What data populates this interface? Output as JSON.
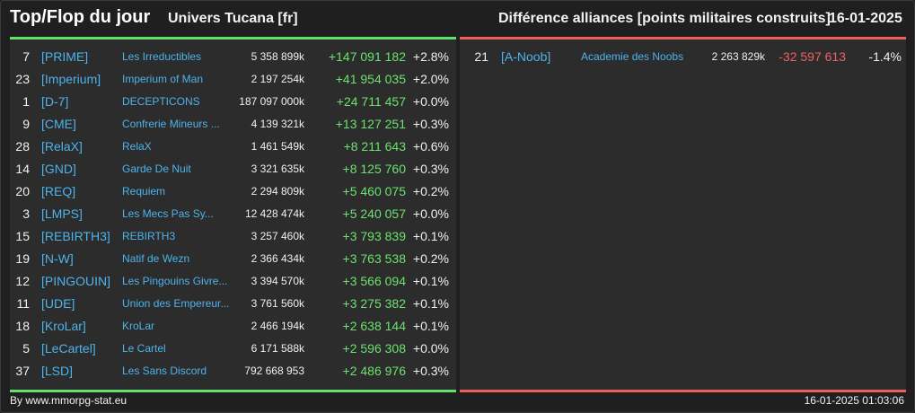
{
  "header": {
    "title": "Top/Flop du jour",
    "universe": "Univers Tucana [fr]",
    "metric": "Différence alliances [points militaires construits]",
    "date": "16-01-2025"
  },
  "colors": {
    "positive": "#6be26f",
    "negative": "#f06161",
    "link": "#4db3ec"
  },
  "top": [
    {
      "rank": "7",
      "tag": "[PRIME]",
      "name": "Les Irreductibles",
      "points": "5 358 899k",
      "diff": "+147 091 182",
      "pct": "+2.8%"
    },
    {
      "rank": "23",
      "tag": "[Imperium]",
      "name": "Imperium of Man",
      "points": "2 197 254k",
      "diff": "+41 954 035",
      "pct": "+2.0%"
    },
    {
      "rank": "1",
      "tag": "[D-7]",
      "name": "DECEPTICONS",
      "points": "187 097 000k",
      "diff": "+24 711 457",
      "pct": "+0.0%"
    },
    {
      "rank": "9",
      "tag": "[CME]",
      "name": "Confrerie Mineurs ...",
      "points": "4 139 321k",
      "diff": "+13 127 251",
      "pct": "+0.3%"
    },
    {
      "rank": "28",
      "tag": "[RelaX]",
      "name": "RelaX",
      "points": "1 461 549k",
      "diff": "+8 211 643",
      "pct": "+0.6%"
    },
    {
      "rank": "14",
      "tag": "[GND]",
      "name": "Garde De Nuit",
      "points": "3 321 635k",
      "diff": "+8 125 760",
      "pct": "+0.3%"
    },
    {
      "rank": "20",
      "tag": "[REQ]",
      "name": "Requiem",
      "points": "2 294 809k",
      "diff": "+5 460 075",
      "pct": "+0.2%"
    },
    {
      "rank": "3",
      "tag": "[LMPS]",
      "name": "Les Mecs Pas Sy...",
      "points": "12 428 474k",
      "diff": "+5 240 057",
      "pct": "+0.0%"
    },
    {
      "rank": "15",
      "tag": "[REBIRTH3]",
      "name": "REBIRTH3",
      "points": "3 257 460k",
      "diff": "+3 793 839",
      "pct": "+0.1%"
    },
    {
      "rank": "19",
      "tag": "[N-W]",
      "name": "Natif de Wezn",
      "points": "2 366 434k",
      "diff": "+3 763 538",
      "pct": "+0.2%"
    },
    {
      "rank": "12",
      "tag": "[PINGOUIN]",
      "name": "Les Pingouins Givre...",
      "points": "3 394 570k",
      "diff": "+3 566 094",
      "pct": "+0.1%"
    },
    {
      "rank": "11",
      "tag": "[UDE]",
      "name": "Union des Empereur...",
      "points": "3 761 560k",
      "diff": "+3 275 382",
      "pct": "+0.1%"
    },
    {
      "rank": "18",
      "tag": "[KroLar]",
      "name": "KroLar",
      "points": "2 466 194k",
      "diff": "+2 638 144",
      "pct": "+0.1%"
    },
    {
      "rank": "5",
      "tag": "[LeCartel]",
      "name": "Le Cartel",
      "points": "6 171 588k",
      "diff": "+2 596 308",
      "pct": "+0.0%"
    },
    {
      "rank": "37",
      "tag": "[LSD]",
      "name": "Les Sans Discord",
      "points": "792 668 953",
      "diff": "+2 486 976",
      "pct": "+0.3%"
    }
  ],
  "flop": [
    {
      "rank": "21",
      "tag": "[A-Noob]",
      "name": "Academie des Noobs",
      "points": "2 263 829k",
      "diff": "-32 597 613",
      "pct": "-1.4%"
    }
  ],
  "footer": {
    "source": "By www.mmorpg-stat.eu",
    "timestamp": "16-01-2025 01:03:06"
  }
}
